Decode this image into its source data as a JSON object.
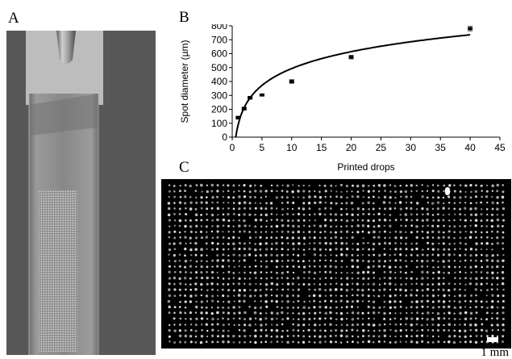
{
  "figure": {
    "panel_labels": {
      "a": "A",
      "b": "B",
      "c": "C"
    },
    "scale_bar_label": "1 mm",
    "photo": {
      "slide_color": "#8a8a8a",
      "background_color": "#585858",
      "array_color": "#c8c8c8"
    },
    "microarray": {
      "spot_color": "#e8e8e8",
      "background_color": "#000000",
      "rows": 28,
      "cols": 63
    }
  },
  "chart_data": {
    "type": "scatter",
    "xlabel": "Printed drops",
    "ylabel": "Spot diameter (µm)",
    "xlim": [
      0,
      45
    ],
    "ylim": [
      0,
      800
    ],
    "xticks": [
      0,
      5,
      10,
      15,
      20,
      25,
      30,
      35,
      40,
      45
    ],
    "yticks": [
      0,
      100,
      200,
      300,
      400,
      500,
      600,
      700,
      800
    ],
    "grid": false,
    "points": [
      {
        "x": 1,
        "y": 140,
        "err": 10
      },
      {
        "x": 2,
        "y": 205,
        "err": 10
      },
      {
        "x": 3,
        "y": 283,
        "err": 10
      },
      {
        "x": 5,
        "y": 303,
        "err": 8
      },
      {
        "x": 10,
        "y": 400,
        "err": 12
      },
      {
        "x": 20,
        "y": 575,
        "err": 12
      },
      {
        "x": 40,
        "y": 780,
        "err": 15
      }
    ],
    "trendline": {
      "type": "logarithmic",
      "a": 175,
      "b": 90
    }
  }
}
